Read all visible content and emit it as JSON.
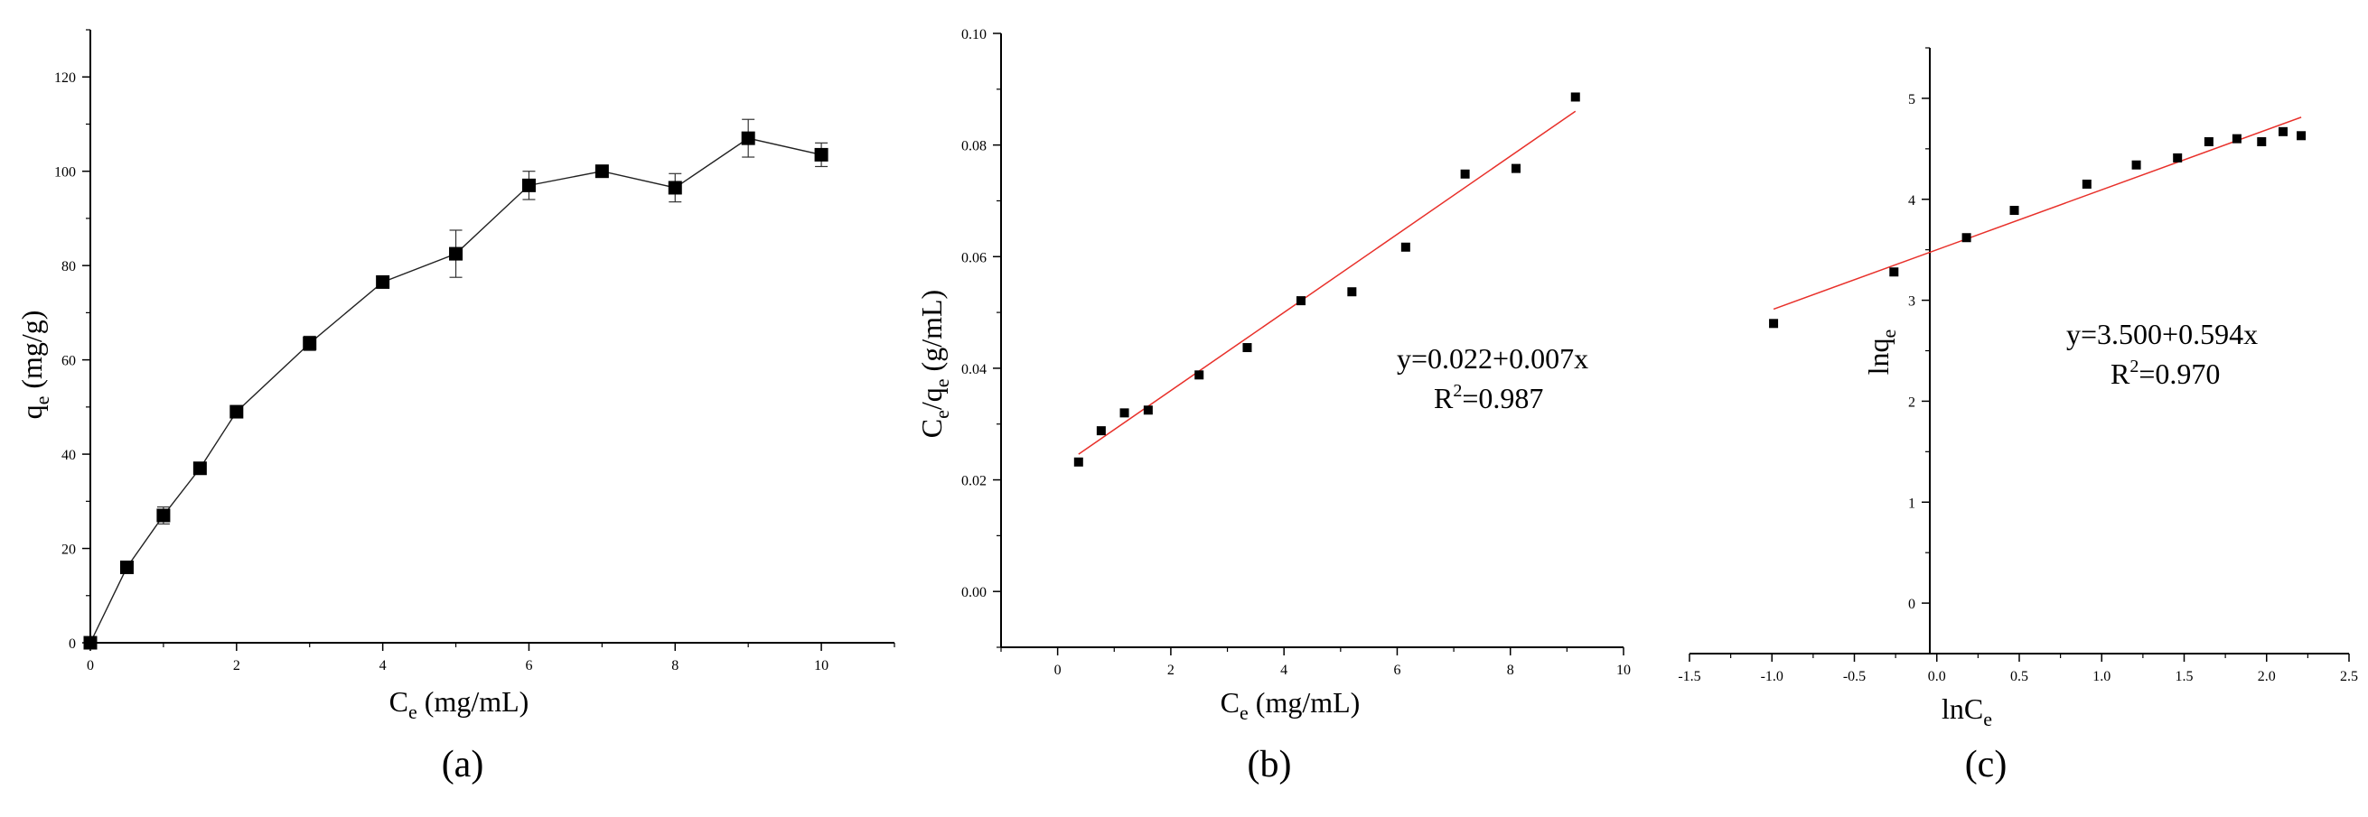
{
  "chart_data": [
    {
      "id": "a",
      "type": "line",
      "panel_label": "(a)",
      "xlabel": {
        "main": "C",
        "sub": "e",
        "rest": " (mg/mL)"
      },
      "ylabel": {
        "main": "q",
        "sub": "e",
        "rest": " (mg/g)"
      },
      "xlim": [
        0,
        11
      ],
      "ylim": [
        0,
        130
      ],
      "xticks": [
        0,
        2,
        4,
        6,
        8,
        10
      ],
      "yticks": [
        0,
        20,
        40,
        60,
        80,
        100,
        120
      ],
      "xtick_labels": [
        "0",
        "2",
        "4",
        "6",
        "8",
        "10"
      ],
      "ytick_labels": [
        "0",
        "20",
        "40",
        "60",
        "80",
        "100",
        "120"
      ],
      "series": [
        {
          "x": [
            0,
            0.5,
            1,
            1.5,
            2,
            3,
            4,
            5,
            6,
            7,
            8,
            9,
            10
          ],
          "y": [
            0,
            16,
            27,
            37,
            49,
            63.5,
            76.5,
            82.5,
            97,
            100,
            96.5,
            107,
            103.5
          ],
          "error": [
            0,
            0,
            1.8,
            0,
            0,
            1.5,
            0,
            5,
            3,
            0,
            3,
            4,
            2.5
          ],
          "marker": "square",
          "color": "#000000",
          "connect": true
        }
      ]
    },
    {
      "id": "b",
      "type": "scatter",
      "panel_label": "(b)",
      "xlabel": {
        "main": "C",
        "sub": "e",
        "rest": " (mg/mL)"
      },
      "ylabel": {
        "main": "C",
        "sub": "e",
        "mid": "/q",
        "sub2": "e",
        "rest": " (g/mL)"
      },
      "xlim": [
        -1,
        10
      ],
      "ylim": [
        -0.01,
        0.1
      ],
      "xticks": [
        0,
        2,
        4,
        6,
        8,
        10
      ],
      "yticks": [
        0.0,
        0.02,
        0.04,
        0.06,
        0.08,
        0.1
      ],
      "xtick_labels": [
        "0",
        "2",
        "4",
        "6",
        "8",
        "10"
      ],
      "ytick_labels": [
        "0.00",
        "0.02",
        "0.04",
        "0.06",
        "0.08",
        "0.10"
      ],
      "series": [
        {
          "x": [
            0.37,
            0.77,
            1.18,
            1.6,
            2.5,
            3.35,
            4.3,
            5.2,
            6.15,
            7.2,
            8.1,
            9.15
          ],
          "y": [
            0.0232,
            0.0288,
            0.032,
            0.0325,
            0.0388,
            0.0437,
            0.0521,
            0.0537,
            0.0617,
            0.0748,
            0.0758,
            0.0886
          ],
          "marker": "square",
          "color": "#000000",
          "connect": false
        }
      ],
      "fit": {
        "intercept": 0.022,
        "slope": 0.007,
        "x_range": [
          0.37,
          9.15
        ],
        "color": "#e8302a"
      },
      "equation": "y=0.022+0.007x",
      "r2_prefix": "R",
      "r2_sup": "2",
      "r2_value": "=0.987"
    },
    {
      "id": "c",
      "type": "scatter",
      "panel_label": "(c)",
      "xlabel": {
        "main": "lnC",
        "sub": "e",
        "rest": ""
      },
      "ylabel": {
        "main": "lnq",
        "sub": "e",
        "rest": ""
      },
      "xlim": [
        -1.5,
        2.5
      ],
      "ylim": [
        -0.5,
        5.5
      ],
      "xticks": [
        -1.5,
        -1.0,
        -0.5,
        0.0,
        0.5,
        1.0,
        1.5,
        2.0,
        2.5
      ],
      "yticks": [
        0,
        1,
        2,
        3,
        4,
        5
      ],
      "xtick_labels": [
        "-1.5",
        "-1.0",
        "-0.5",
        "0.0",
        "0.5",
        "1.0",
        "1.5",
        "2.0",
        "2.5"
      ],
      "ytick_labels": [
        "0",
        "1",
        "2",
        "3",
        "4",
        "5"
      ],
      "series": [
        {
          "x": [
            -0.99,
            -0.26,
            0.18,
            0.47,
            0.91,
            1.21,
            1.46,
            1.65,
            1.82,
            1.97,
            2.1,
            2.21
          ],
          "y": [
            2.77,
            3.28,
            3.62,
            3.89,
            4.15,
            4.34,
            4.41,
            4.57,
            4.6,
            4.57,
            4.67,
            4.63
          ],
          "marker": "square",
          "color": "#000000",
          "connect": false
        }
      ],
      "fit": {
        "intercept": 3.5,
        "slope": 0.594,
        "x_range": [
          -0.99,
          2.21
        ],
        "color": "#e8302a"
      },
      "equation": "y=3.500+0.594x",
      "r2_prefix": "R",
      "r2_sup": "2",
      "r2_value": "=0.970"
    }
  ]
}
